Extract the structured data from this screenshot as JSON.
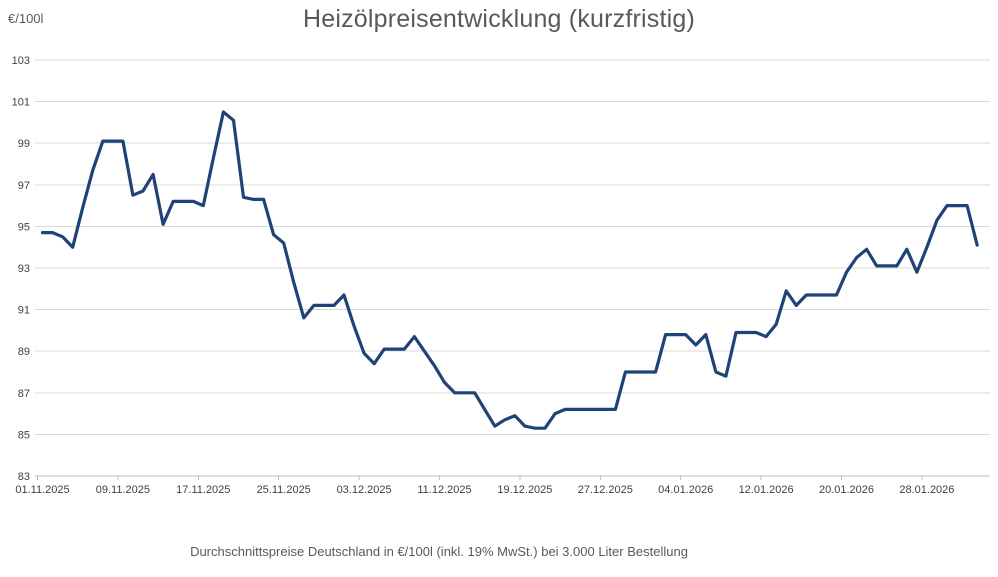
{
  "title": "Heizölpreisentwicklung (kurzfristig)",
  "y_axis_unit_label": "€/100l",
  "footer_caption": "Durchschnittspreise Deutschland in €/100l (inkl. 19% MwSt.) bei 3.000 Liter Bestellung",
  "colors": {
    "line": "#1f4376",
    "gridline": "#d9d9d9",
    "axis": "#bfbfbf",
    "tick_text": "#404040",
    "title_text": "#595959"
  },
  "chart_data": {
    "type": "line",
    "title": "Heizölpreisentwicklung (kurzfristig)",
    "ylabel": "€/100l",
    "ylim": [
      83,
      103
    ],
    "y_ticks": [
      83,
      85,
      87,
      89,
      91,
      93,
      95,
      97,
      99,
      101,
      103
    ],
    "x_tick_labels": [
      "01.11.2025",
      "09.11.2025",
      "17.11.2025",
      "25.11.2025",
      "03.12.2025",
      "11.12.2025",
      "19.12.2025",
      "27.12.2025",
      "04.01.2026",
      "12.01.2026",
      "20.01.2026",
      "28.01.2026"
    ],
    "x_tick_step_days": 8,
    "start_date": "01.11.2025",
    "end_date": "02.02.2026",
    "interval": "daily",
    "grid": "horizontal",
    "legend_position": "none",
    "values": [
      94.7,
      94.7,
      94.5,
      94.0,
      95.9,
      97.7,
      99.1,
      99.1,
      99.1,
      96.5,
      96.7,
      97.5,
      95.1,
      96.2,
      96.2,
      96.2,
      96.0,
      98.3,
      100.5,
      100.1,
      96.4,
      96.3,
      96.3,
      94.6,
      94.2,
      92.3,
      90.6,
      91.2,
      91.2,
      91.2,
      91.7,
      90.2,
      88.9,
      88.4,
      89.1,
      89.1,
      89.1,
      89.7,
      89.0,
      88.3,
      87.5,
      87.0,
      87.0,
      87.0,
      86.2,
      85.4,
      85.7,
      85.9,
      85.4,
      85.3,
      85.3,
      86.0,
      86.2,
      86.2,
      86.2,
      86.2,
      86.2,
      86.2,
      88.0,
      88.0,
      88.0,
      88.0,
      89.8,
      89.8,
      89.8,
      89.3,
      89.8,
      88.0,
      87.8,
      89.9,
      89.9,
      89.9,
      89.7,
      90.3,
      91.9,
      91.2,
      91.7,
      91.7,
      91.7,
      91.7,
      92.8,
      93.5,
      93.9,
      93.1,
      93.1,
      93.1,
      93.9,
      92.8,
      94.0,
      95.3,
      96.0,
      96.0,
      96.0,
      94.1
    ]
  }
}
